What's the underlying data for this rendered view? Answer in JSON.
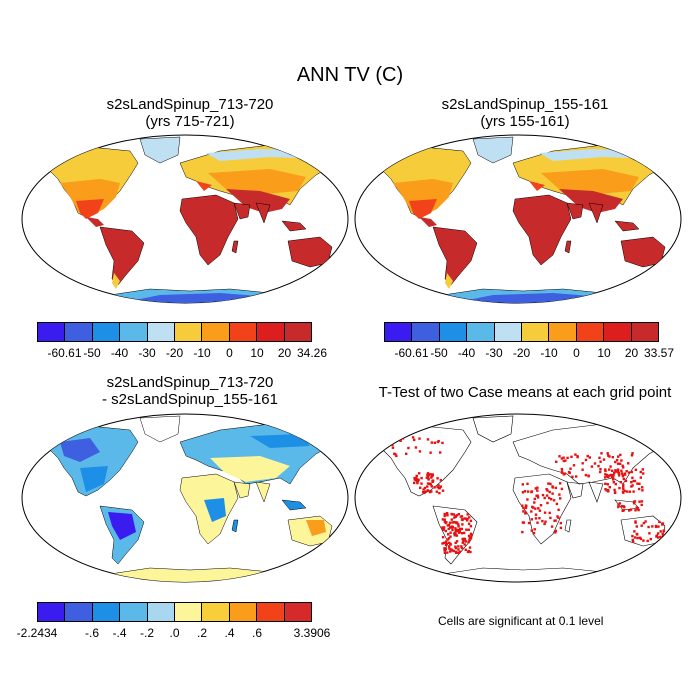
{
  "main_title": "ANN TV (C)",
  "panels": {
    "top_left": {
      "line1": "s2sLandSpinup_713-720",
      "line2": "(yrs 715-721)"
    },
    "top_right": {
      "line1": "s2sLandSpinup_155-161",
      "line2": "(yrs 155-161)"
    },
    "bottom_left": {
      "line1": "s2sLandSpinup_713-720",
      "line2": "- s2sLandSpinup_155-161"
    },
    "bottom_right": {
      "line1": "T-Test of two Case means at each grid point"
    }
  },
  "colorbars": {
    "temp_colors": [
      "#3a1cf0",
      "#3d5fe0",
      "#1e8fe6",
      "#5ab9e8",
      "#bfe0f2",
      "#f6cc3a",
      "#f99d1a",
      "#f1421a",
      "#dc1e1e",
      "#c62a2a"
    ],
    "diff_colors": [
      "#3a1cf0",
      "#3d5fe0",
      "#1e8fe6",
      "#5ab9e8",
      "#a9d7f0",
      "#fcf59a",
      "#f8cf3a",
      "#f99d1a",
      "#f1421a",
      "#d62a2a"
    ],
    "top_left_labels": [
      "-60.61",
      "-50",
      "-40",
      "-30",
      "-20",
      "-10",
      "0",
      "10",
      "20",
      "34.26"
    ],
    "top_right_labels": [
      "-60.61",
      "-50",
      "-40",
      "-30",
      "-20",
      "-10",
      "0",
      "10",
      "20",
      "33.57"
    ],
    "diff_labels": [
      "-2.2434",
      ".-6",
      ".-4",
      ".-2",
      ".0",
      ".2",
      ".4",
      ".6",
      "3.3906"
    ]
  },
  "significance_note": "Cells are significant at 0.1 level",
  "significance_color": "#e81010"
}
